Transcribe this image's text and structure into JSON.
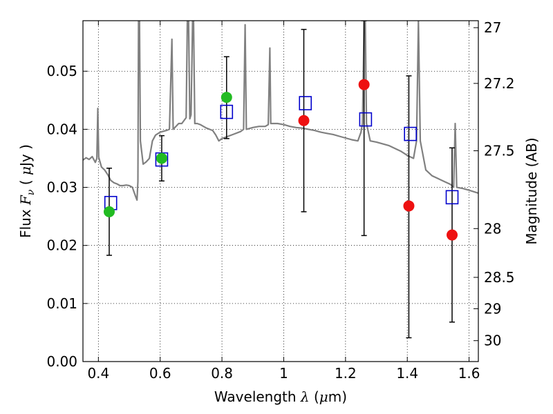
{
  "chart_data": {
    "type": "scatter",
    "xlabel": {
      "pre": "Wavelength ",
      "sym": "λ",
      "mid": " (",
      "mu": "μ",
      "unit": "m)"
    },
    "ylabel": {
      "pre": "Flux ",
      "sym": "F",
      "sub": "ν",
      "mid": " ( ",
      "mu": "μ",
      "unit": "Jy )"
    },
    "y2label": "Magnitude (AB)",
    "xlim": [
      0.35,
      1.63
    ],
    "ylim": [
      0.0,
      0.0587
    ],
    "grid": true,
    "xticks": [
      0.4,
      0.6,
      0.8,
      1.0,
      1.2,
      1.4,
      1.6
    ],
    "xtick_labels": [
      "0.4",
      "0.6",
      "0.8",
      "1",
      "1.2",
      "1.4",
      "1.6"
    ],
    "yticks": [
      0.0,
      0.01,
      0.02,
      0.03,
      0.04,
      0.05
    ],
    "ytick_labels": [
      "0.00",
      "0.01",
      "0.02",
      "0.03",
      "0.04",
      "0.05"
    ],
    "y2ticks": [
      {
        "label": "27",
        "flux": 0.0575
      },
      {
        "label": "27.2",
        "flux": 0.0479
      },
      {
        "label": "27.5",
        "flux": 0.0363
      },
      {
        "label": "28",
        "flux": 0.0229
      },
      {
        "label": "28.5",
        "flux": 0.0145
      },
      {
        "label": "29",
        "flux": 0.0091
      },
      {
        "label": "30",
        "flux": 0.0036
      }
    ],
    "model_spectrum": {
      "color": "#808080",
      "points": [
        [
          0.35,
          0.0347
        ],
        [
          0.36,
          0.0351
        ],
        [
          0.37,
          0.0348
        ],
        [
          0.38,
          0.0353
        ],
        [
          0.39,
          0.0343
        ],
        [
          0.395,
          0.035
        ],
        [
          0.398,
          0.0436
        ],
        [
          0.401,
          0.0352
        ],
        [
          0.41,
          0.0335
        ],
        [
          0.42,
          0.033
        ],
        [
          0.43,
          0.0322
        ],
        [
          0.44,
          0.0312
        ],
        [
          0.45,
          0.0308
        ],
        [
          0.46,
          0.0306
        ],
        [
          0.47,
          0.0303
        ],
        [
          0.48,
          0.0303
        ],
        [
          0.49,
          0.0304
        ],
        [
          0.5,
          0.0303
        ],
        [
          0.51,
          0.03
        ],
        [
          0.52,
          0.0285
        ],
        [
          0.525,
          0.0278
        ],
        [
          0.528,
          0.031
        ],
        [
          0.53,
          0.0587
        ],
        [
          0.533,
          0.0587
        ],
        [
          0.536,
          0.038
        ],
        [
          0.545,
          0.034
        ],
        [
          0.555,
          0.0344
        ],
        [
          0.565,
          0.035
        ],
        [
          0.575,
          0.038
        ],
        [
          0.585,
          0.039
        ],
        [
          0.6,
          0.0395
        ],
        [
          0.62,
          0.0398
        ],
        [
          0.63,
          0.04
        ],
        [
          0.638,
          0.0555
        ],
        [
          0.642,
          0.04
        ],
        [
          0.66,
          0.041
        ],
        [
          0.67,
          0.041
        ],
        [
          0.684,
          0.042
        ],
        [
          0.688,
          0.0587
        ],
        [
          0.692,
          0.0587
        ],
        [
          0.696,
          0.0418
        ],
        [
          0.7,
          0.0425
        ],
        [
          0.705,
          0.0587
        ],
        [
          0.708,
          0.0587
        ],
        [
          0.712,
          0.041
        ],
        [
          0.72,
          0.041
        ],
        [
          0.73,
          0.0408
        ],
        [
          0.74,
          0.0405
        ],
        [
          0.75,
          0.0402
        ],
        [
          0.76,
          0.04
        ],
        [
          0.77,
          0.0398
        ],
        [
          0.78,
          0.039
        ],
        [
          0.785,
          0.0385
        ],
        [
          0.79,
          0.038
        ],
        [
          0.8,
          0.0384
        ],
        [
          0.82,
          0.0388
        ],
        [
          0.84,
          0.0392
        ],
        [
          0.86,
          0.0396
        ],
        [
          0.87,
          0.04
        ],
        [
          0.875,
          0.058
        ],
        [
          0.879,
          0.04
        ],
        [
          0.9,
          0.0403
        ],
        [
          0.92,
          0.0405
        ],
        [
          0.94,
          0.0405
        ],
        [
          0.95,
          0.0408
        ],
        [
          0.955,
          0.054
        ],
        [
          0.958,
          0.041
        ],
        [
          0.98,
          0.041
        ],
        [
          1.0,
          0.0408
        ],
        [
          1.02,
          0.0405
        ],
        [
          1.04,
          0.0403
        ],
        [
          1.06,
          0.0402
        ],
        [
          1.08,
          0.04
        ],
        [
          1.1,
          0.0398
        ],
        [
          1.12,
          0.0395
        ],
        [
          1.14,
          0.0393
        ],
        [
          1.16,
          0.0391
        ],
        [
          1.18,
          0.0388
        ],
        [
          1.2,
          0.0385
        ],
        [
          1.22,
          0.0382
        ],
        [
          1.24,
          0.038
        ],
        [
          1.25,
          0.0395
        ],
        [
          1.255,
          0.041
        ],
        [
          1.26,
          0.0587
        ],
        [
          1.264,
          0.0587
        ],
        [
          1.268,
          0.041
        ],
        [
          1.28,
          0.038
        ],
        [
          1.3,
          0.0378
        ],
        [
          1.32,
          0.0375
        ],
        [
          1.34,
          0.0372
        ],
        [
          1.36,
          0.0367
        ],
        [
          1.38,
          0.0362
        ],
        [
          1.4,
          0.0355
        ],
        [
          1.42,
          0.035
        ],
        [
          1.43,
          0.038
        ],
        [
          1.436,
          0.0587
        ],
        [
          1.442,
          0.038
        ],
        [
          1.46,
          0.033
        ],
        [
          1.48,
          0.032
        ],
        [
          1.5,
          0.0315
        ],
        [
          1.52,
          0.031
        ],
        [
          1.54,
          0.0305
        ],
        [
          1.55,
          0.03
        ],
        [
          1.555,
          0.041
        ],
        [
          1.56,
          0.03
        ],
        [
          1.58,
          0.0298
        ],
        [
          1.6,
          0.0295
        ],
        [
          1.63,
          0.029
        ]
      ]
    },
    "series": [
      {
        "marker": "square-open",
        "color": "#0000cc",
        "points": [
          [
            0.44,
            0.0273
          ],
          [
            0.605,
            0.0348
          ],
          [
            0.815,
            0.043
          ],
          [
            1.07,
            0.0445
          ],
          [
            1.265,
            0.0417
          ],
          [
            1.41,
            0.0392
          ],
          [
            1.545,
            0.0283
          ]
        ]
      },
      {
        "marker": "circle",
        "color": "#22bb22",
        "points": [
          [
            0.435,
            0.0258
          ],
          [
            0.605,
            0.035
          ],
          [
            0.815,
            0.0455
          ]
        ]
      },
      {
        "marker": "circle",
        "color": "#ee1111",
        "points": [
          [
            1.065,
            0.0415
          ],
          [
            1.26,
            0.0477
          ],
          [
            1.405,
            0.0268
          ],
          [
            1.545,
            0.0218
          ]
        ]
      }
    ],
    "error_bars": [
      {
        "x": 0.435,
        "y": 0.0258,
        "lo": 0.0183,
        "hi": 0.0333
      },
      {
        "x": 0.605,
        "y": 0.035,
        "lo": 0.0311,
        "hi": 0.0389
      },
      {
        "x": 0.815,
        "y": 0.0455,
        "lo": 0.0384,
        "hi": 0.0525
      },
      {
        "x": 1.065,
        "y": 0.0415,
        "lo": 0.0258,
        "hi": 0.0572
      },
      {
        "x": 1.26,
        "y": 0.0477,
        "lo": 0.0217,
        "hi": 0.0587
      },
      {
        "x": 1.405,
        "y": 0.0268,
        "lo": 0.0041,
        "hi": 0.0492
      },
      {
        "x": 1.545,
        "y": 0.0218,
        "lo": 0.0068,
        "hi": 0.0368
      }
    ]
  }
}
